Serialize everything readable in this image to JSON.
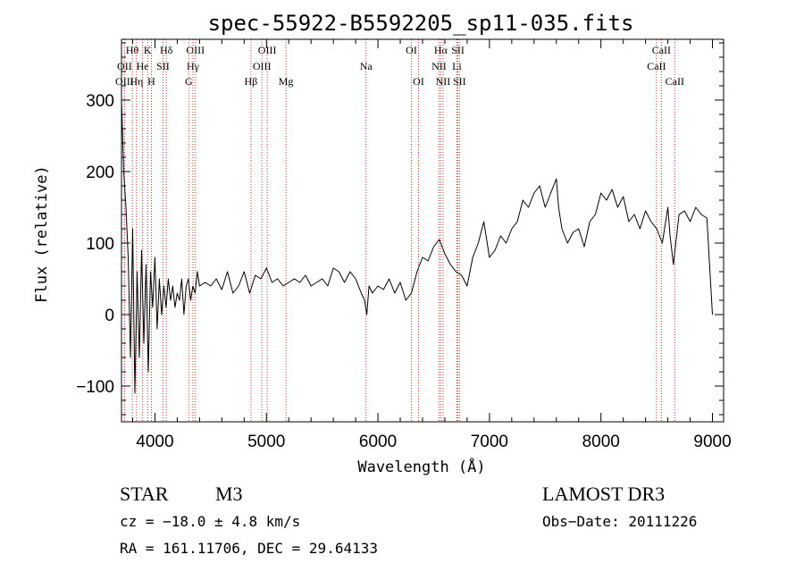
{
  "chart_data": {
    "type": "line",
    "title": "spec-55922-B5592205_sp11-035.fits",
    "xlabel": "Wavelength (Å)",
    "ylabel": "Flux (relative)",
    "xlim": [
      3700,
      9100
    ],
    "ylim": [
      -150,
      385
    ],
    "xticks": [
      4000,
      5000,
      6000,
      7000,
      8000,
      9000
    ],
    "yticks": [
      -100,
      0,
      100,
      200,
      300
    ],
    "series": [
      {
        "name": "spectrum",
        "x": [
          3700,
          3720,
          3740,
          3760,
          3780,
          3800,
          3820,
          3840,
          3860,
          3880,
          3900,
          3920,
          3940,
          3960,
          3980,
          4000,
          4020,
          4040,
          4060,
          4080,
          4100,
          4120,
          4140,
          4160,
          4180,
          4200,
          4220,
          4240,
          4260,
          4280,
          4300,
          4320,
          4340,
          4360,
          4380,
          4400,
          4450,
          4500,
          4550,
          4600,
          4650,
          4700,
          4750,
          4800,
          4850,
          4900,
          4950,
          5000,
          5050,
          5100,
          5150,
          5200,
          5250,
          5300,
          5350,
          5400,
          5450,
          5500,
          5550,
          5600,
          5650,
          5700,
          5750,
          5800,
          5850,
          5880,
          5900,
          5920,
          5950,
          6000,
          6050,
          6100,
          6150,
          6200,
          6250,
          6300,
          6350,
          6400,
          6450,
          6500,
          6550,
          6600,
          6650,
          6700,
          6750,
          6800,
          6850,
          6900,
          6950,
          7000,
          7050,
          7100,
          7150,
          7200,
          7250,
          7300,
          7350,
          7400,
          7450,
          7500,
          7550,
          7600,
          7620,
          7650,
          7700,
          7750,
          7800,
          7850,
          7900,
          7950,
          8000,
          8050,
          8100,
          8150,
          8200,
          8250,
          8300,
          8350,
          8400,
          8450,
          8500,
          8550,
          8600,
          8620,
          8650,
          8700,
          8750,
          8800,
          8850,
          8900,
          8950,
          9000
        ],
        "values": [
          300,
          200,
          150,
          80,
          -60,
          120,
          -110,
          60,
          -60,
          90,
          -40,
          70,
          -80,
          60,
          10,
          80,
          -20,
          50,
          0,
          40,
          10,
          50,
          20,
          40,
          10,
          30,
          20,
          50,
          0,
          40,
          50,
          20,
          40,
          30,
          60,
          40,
          45,
          40,
          50,
          35,
          60,
          30,
          40,
          60,
          30,
          55,
          50,
          65,
          45,
          50,
          40,
          45,
          50,
          45,
          55,
          40,
          45,
          50,
          40,
          65,
          60,
          45,
          60,
          50,
          30,
          20,
          0,
          40,
          30,
          40,
          35,
          50,
          30,
          45,
          20,
          30,
          60,
          80,
          75,
          95,
          105,
          85,
          70,
          60,
          55,
          40,
          80,
          100,
          130,
          80,
          90,
          110,
          100,
          120,
          130,
          160,
          150,
          170,
          180,
          150,
          170,
          190,
          150,
          120,
          100,
          115,
          120,
          95,
          130,
          140,
          170,
          160,
          175,
          150,
          165,
          130,
          140,
          120,
          145,
          130,
          120,
          100,
          150,
          110,
          70,
          140,
          145,
          130,
          150,
          140,
          135,
          0
        ]
      }
    ],
    "spectral_lines": [
      {
        "label": "Hθ",
        "x": 3797,
        "row": 1
      },
      {
        "label": "OII",
        "x": 3727,
        "row": 2
      },
      {
        "label": "OIII",
        "x": 3727,
        "row": 3
      },
      {
        "label": "Hη",
        "x": 3835,
        "row": 3
      },
      {
        "label": "He",
        "x": 3889,
        "row": 2
      },
      {
        "label": "K",
        "x": 3934,
        "row": 1
      },
      {
        "label": "H",
        "x": 3968,
        "row": 3
      },
      {
        "label": "Hδ",
        "x": 4102,
        "row": 1
      },
      {
        "label": "SII",
        "x": 4072,
        "row": 2
      },
      {
        "label": "OIII",
        "x": 4363,
        "row": 1
      },
      {
        "label": "Hγ",
        "x": 4341,
        "row": 2
      },
      {
        "label": "G",
        "x": 4304,
        "row": 3
      },
      {
        "label": "OIII",
        "x": 5007,
        "row": 1
      },
      {
        "label": "OIII",
        "x": 4959,
        "row": 2
      },
      {
        "label": "Hβ",
        "x": 4861,
        "row": 3
      },
      {
        "label": "Mg",
        "x": 5175,
        "row": 3
      },
      {
        "label": "Na",
        "x": 5893,
        "row": 2
      },
      {
        "label": "OI",
        "x": 6300,
        "row": 1
      },
      {
        "label": "OI",
        "x": 6364,
        "row": 3
      },
      {
        "label": "Hα",
        "x": 6563,
        "row": 1
      },
      {
        "label": "NII",
        "x": 6548,
        "row": 2
      },
      {
        "label": "NII",
        "x": 6584,
        "row": 3
      },
      {
        "label": "SII",
        "x": 6717,
        "row": 1
      },
      {
        "label": "Li",
        "x": 6708,
        "row": 2
      },
      {
        "label": "SII",
        "x": 6731,
        "row": 3
      },
      {
        "label": "CaII",
        "x": 8542,
        "row": 1
      },
      {
        "label": "CaII",
        "x": 8498,
        "row": 2
      },
      {
        "label": "CaII",
        "x": 8662,
        "row": 3
      }
    ]
  },
  "info": {
    "object_class": "STAR",
    "subclass": "M3",
    "survey": "LAMOST DR3",
    "cz": "cz = −18.0 ± 4.8 km/s",
    "obs_date": "Obs−Date: 20111226",
    "coords": "RA = 161.11706, DEC =  29.64133"
  },
  "colors": {
    "line_marker": "#c0392b",
    "spectrum": "#000000",
    "axes": "#000000"
  }
}
